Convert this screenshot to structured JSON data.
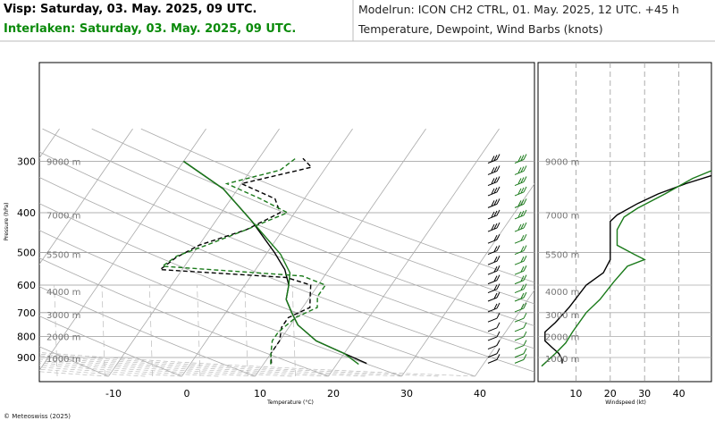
{
  "header": {
    "title_black": "Visp: Saturday, 03. May. 2025, 09 UTC.",
    "title_green": "Interlaken: Saturday, 03. May. 2025, 09 UTC.",
    "modelrun": "Modelrun: ICON CH2 CTRL, 01. May. 2025, 12 UTC. +45 h",
    "subtitle": "Temperature, Dewpoint, Wind Barbs (knots)"
  },
  "footer": {
    "copyright": "© Meteoswiss (2025)"
  },
  "colors": {
    "visp": "#000000",
    "interlaken": "#1a7a1a",
    "grid": "#999999"
  },
  "chart_data": [
    {
      "type": "line",
      "skewT": true,
      "xlabel": "Temperature (°C)",
      "ylabel": "Pressure (hPa)",
      "ylog": true,
      "ylim": [
        950,
        290
      ],
      "xlim": [
        -20,
        48
      ],
      "xticks": [
        -10,
        0,
        10,
        20,
        30,
        40
      ],
      "pressure_ticks": [
        300,
        400,
        500,
        600,
        700,
        800,
        900
      ],
      "height_labels": [
        {
          "p": 300,
          "label": "9000 m"
        },
        {
          "p": 405,
          "label": "7000 m"
        },
        {
          "p": 505,
          "label": "5500 m"
        },
        {
          "p": 622,
          "label": "4000 m"
        },
        {
          "p": 708,
          "label": "3000 m"
        },
        {
          "p": 800,
          "label": "2000 m"
        },
        {
          "p": 905,
          "label": "1000 m"
        }
      ],
      "series": [
        {
          "station": "Visp",
          "kind": "temperature",
          "style": "solid",
          "points": [
            [
              24,
              930
            ],
            [
              20,
              880
            ],
            [
              15,
              820
            ],
            [
              11,
              750
            ],
            [
              9,
              700
            ],
            [
              7,
              650
            ],
            [
              6,
              600
            ],
            [
              4,
              550
            ],
            [
              1,
              500
            ],
            [
              -5,
              420
            ],
            [
              -12,
              350
            ],
            [
              -20,
              300
            ]
          ]
        },
        {
          "station": "Visp",
          "kind": "dewpoint",
          "style": "dashed",
          "points": [
            [
              11,
              930
            ],
            [
              10,
              880
            ],
            [
              10,
              820
            ],
            [
              9,
              760
            ],
            [
              9,
              720
            ],
            [
              11,
              680
            ],
            [
              10,
              640
            ],
            [
              9,
              600
            ],
            [
              5,
              575
            ],
            [
              -13,
              550
            ],
            [
              -12,
              515
            ],
            [
              -10,
              480
            ],
            [
              -5,
              440
            ],
            [
              -2,
              400
            ],
            [
              -4,
              370
            ],
            [
              -10,
              340
            ],
            [
              -2,
              310
            ],
            [
              -4,
              295
            ]
          ]
        },
        {
          "station": "Interlaken",
          "kind": "temperature",
          "style": "solid",
          "points": [
            [
              23,
              935
            ],
            [
              20,
              880
            ],
            [
              15,
              820
            ],
            [
              11,
              750
            ],
            [
              9,
              700
            ],
            [
              7,
              650
            ],
            [
              6,
              600
            ],
            [
              5,
              560
            ],
            [
              2,
              505
            ],
            [
              -5,
              420
            ],
            [
              -12,
              350
            ],
            [
              -20,
              300
            ]
          ]
        },
        {
          "station": "Interlaken",
          "kind": "dewpoint",
          "style": "dashed",
          "points": [
            [
              11,
              935
            ],
            [
              10,
              880
            ],
            [
              9,
              820
            ],
            [
              9,
              780
            ],
            [
              10,
              720
            ],
            [
              12,
              680
            ],
            [
              11,
              640
            ],
            [
              11,
              600
            ],
            [
              7,
              570
            ],
            [
              -13,
              540
            ],
            [
              -12,
              510
            ],
            [
              -9,
              480
            ],
            [
              -5,
              440
            ],
            [
              -1,
              400
            ],
            [
              -6,
              370
            ],
            [
              -12,
              340
            ],
            [
              -6,
              315
            ],
            [
              -5,
              295
            ]
          ]
        }
      ]
    },
    {
      "type": "line",
      "xlabel": "Windspeed (kt)",
      "xlim": [
        0,
        50
      ],
      "xticks": [
        10,
        20,
        30,
        40
      ],
      "height_labels": [
        "9000 m",
        "7000 m",
        "5500 m",
        "4000 m",
        "3000 m",
        "2000 m",
        "1000 m"
      ],
      "series": [
        {
          "station": "Visp",
          "color": "black",
          "points": [
            [
              6,
              930
            ],
            [
              6,
              910
            ],
            [
              5,
              880
            ],
            [
              3,
              850
            ],
            [
              1,
              820
            ],
            [
              1,
              780
            ],
            [
              4,
              740
            ],
            [
              8,
              680
            ],
            [
              13,
              600
            ],
            [
              18,
              560
            ],
            [
              20,
              520
            ],
            [
              20,
              480
            ],
            [
              20,
              420
            ],
            [
              22,
              405
            ],
            [
              28,
              380
            ],
            [
              34,
              360
            ],
            [
              42,
              340
            ],
            [
              52,
              320
            ]
          ]
        },
        {
          "station": "Interlaken",
          "color": "green",
          "points": [
            [
              0,
              945
            ],
            [
              4,
              880
            ],
            [
              7,
              830
            ],
            [
              9,
              780
            ],
            [
              13,
              700
            ],
            [
              17,
              650
            ],
            [
              21,
              590
            ],
            [
              25,
              540
            ],
            [
              30,
              520
            ],
            [
              27,
              505
            ],
            [
              22,
              480
            ],
            [
              22,
              440
            ],
            [
              24,
              410
            ],
            [
              28,
              390
            ],
            [
              36,
              360
            ],
            [
              44,
              330
            ],
            [
              52,
              310
            ]
          ]
        }
      ]
    }
  ]
}
